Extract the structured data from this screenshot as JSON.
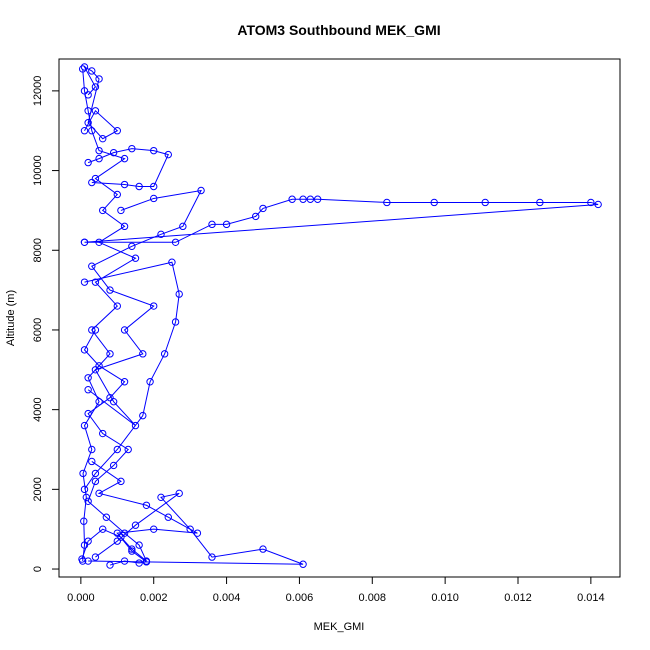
{
  "chart_data": {
    "type": "line",
    "title": "ATOM3 Southbound MEK_GMI",
    "xlabel": "MEK_GMI",
    "ylabel": "Altitude (m)",
    "xlim": [
      -0.0006,
      0.0148
    ],
    "ylim": [
      -200,
      12800
    ],
    "x_ticks": [
      0.0,
      0.002,
      0.004,
      0.006,
      0.008,
      0.01,
      0.012,
      0.014
    ],
    "x_tick_labels": [
      "0.000",
      "0.002",
      "0.004",
      "0.006",
      "0.008",
      "0.010",
      "0.012",
      "0.014"
    ],
    "y_ticks": [
      0,
      2000,
      4000,
      6000,
      8000,
      10000,
      12000
    ],
    "y_tick_labels": [
      "0",
      "2000",
      "4000",
      "6000",
      "8000",
      "10000",
      "12000"
    ],
    "grid": false,
    "legend": "none",
    "marker": "open-circle",
    "colors": {
      "series": "#0000ff"
    },
    "series": [
      {
        "values": [
          [
            5e-05,
            200
          ],
          [
            0.0001,
            600
          ],
          [
            8e-05,
            1200
          ],
          [
            0.00015,
            1800
          ],
          [
            6e-05,
            2400
          ],
          [
            0.0003,
            3000
          ],
          [
            0.0001,
            3600
          ],
          [
            0.0005,
            4200
          ],
          [
            0.0002,
            4800
          ],
          [
            0.0008,
            5400
          ],
          [
            0.0003,
            6000
          ],
          [
            0.001,
            6600
          ],
          [
            0.0004,
            7200
          ],
          [
            0.0015,
            7800
          ],
          [
            0.0005,
            8200
          ],
          [
            0.0012,
            8600
          ],
          [
            0.0006,
            9000
          ],
          [
            0.001,
            9400
          ],
          [
            0.0004,
            9800
          ],
          [
            0.0012,
            10300
          ],
          [
            0.0005,
            10500
          ],
          [
            0.0003,
            11000
          ],
          [
            0.0002,
            11500
          ],
          [
            0.0001,
            12000
          ],
          [
            5e-05,
            12550
          ]
        ]
      },
      {
        "values": [
          [
            3e-05,
            250
          ],
          [
            0.0002,
            700
          ],
          [
            0.0006,
            1000
          ],
          [
            0.0011,
            800
          ],
          [
            0.0014,
            500
          ],
          [
            0.0018,
            200
          ],
          [
            0.0016,
            600
          ],
          [
            0.0012,
            900
          ],
          [
            0.0007,
            1300
          ],
          [
            0.0002,
            1700
          ],
          [
            0.0004,
            2200
          ],
          [
            0.0009,
            2600
          ],
          [
            0.0013,
            3000
          ],
          [
            0.0006,
            3400
          ],
          [
            0.0002,
            3900
          ],
          [
            0.0008,
            4300
          ],
          [
            0.0012,
            4700
          ],
          [
            0.0005,
            5100
          ],
          [
            0.0001,
            5500
          ],
          [
            0.0004,
            6000
          ]
        ]
      },
      {
        "values": [
          [
            0.0001,
            8200
          ],
          [
            0.0026,
            8200
          ],
          [
            0.0036,
            8650
          ],
          [
            0.004,
            8650
          ],
          [
            0.0048,
            8850
          ],
          [
            0.005,
            9050
          ],
          [
            0.0058,
            9280
          ],
          [
            0.0061,
            9280
          ],
          [
            0.0063,
            9280
          ],
          [
            0.0065,
            9280
          ],
          [
            0.0084,
            9200
          ],
          [
            0.0097,
            9200
          ],
          [
            0.0111,
            9200
          ],
          [
            0.0126,
            9200
          ],
          [
            0.014,
            9200
          ],
          [
            0.0142,
            9150
          ],
          [
            0.0001,
            8200
          ]
        ]
      },
      {
        "values": [
          [
            0.0002,
            200
          ],
          [
            0.0061,
            120
          ],
          [
            0.005,
            500
          ],
          [
            0.0036,
            300
          ],
          [
            0.003,
            1000
          ],
          [
            0.0022,
            1800
          ],
          [
            0.0027,
            1900
          ],
          [
            0.0015,
            1100
          ],
          [
            0.001,
            700
          ],
          [
            0.0004,
            300
          ]
        ]
      },
      {
        "values": [
          [
            0.0001,
            7200
          ],
          [
            0.0025,
            7700
          ],
          [
            0.0027,
            6900
          ],
          [
            0.0026,
            6200
          ],
          [
            0.0023,
            5400
          ],
          [
            0.0019,
            4700
          ],
          [
            0.0017,
            3850
          ],
          [
            0.001,
            3000
          ],
          [
            0.0004,
            2400
          ],
          [
            0.0001,
            2000
          ]
        ]
      },
      {
        "values": [
          [
            0.0003,
            9700
          ],
          [
            0.0012,
            9650
          ],
          [
            0.0016,
            9600
          ],
          [
            0.002,
            9600
          ],
          [
            0.0024,
            10400
          ],
          [
            0.002,
            10500
          ],
          [
            0.0014,
            10550
          ],
          [
            0.0009,
            10450
          ],
          [
            0.0005,
            10300
          ],
          [
            0.0002,
            10200
          ]
        ]
      },
      {
        "values": [
          [
            0.0001,
            11000
          ],
          [
            0.0004,
            11500
          ],
          [
            0.001,
            11000
          ],
          [
            0.0006,
            10800
          ],
          [
            0.0002,
            11200
          ],
          [
            0.0005,
            12300
          ],
          [
            0.0003,
            12500
          ],
          [
            0.0001,
            12600
          ],
          [
            0.0004,
            12100
          ],
          [
            0.0002,
            11900
          ]
        ]
      },
      {
        "values": [
          [
            0.0008,
            100
          ],
          [
            0.0012,
            200
          ],
          [
            0.0016,
            150
          ],
          [
            0.0018,
            180
          ],
          [
            0.0014,
            450
          ],
          [
            0.001,
            900
          ],
          [
            0.002,
            1000
          ],
          [
            0.0032,
            900
          ],
          [
            0.0024,
            1300
          ],
          [
            0.0018,
            1600
          ],
          [
            0.0005,
            1900
          ],
          [
            0.0011,
            2200
          ],
          [
            0.0003,
            2700
          ]
        ]
      },
      {
        "values": [
          [
            0.0002,
            4500
          ],
          [
            0.0015,
            3600
          ],
          [
            0.0009,
            4200
          ],
          [
            0.0004,
            5000
          ],
          [
            0.0017,
            5400
          ],
          [
            0.0012,
            6000
          ],
          [
            0.002,
            6600
          ],
          [
            0.0008,
            7000
          ],
          [
            0.0003,
            7600
          ],
          [
            0.0014,
            8100
          ],
          [
            0.0022,
            8400
          ],
          [
            0.0028,
            8600
          ],
          [
            0.0033,
            9500
          ],
          [
            0.002,
            9300
          ],
          [
            0.0011,
            9000
          ]
        ]
      }
    ]
  }
}
